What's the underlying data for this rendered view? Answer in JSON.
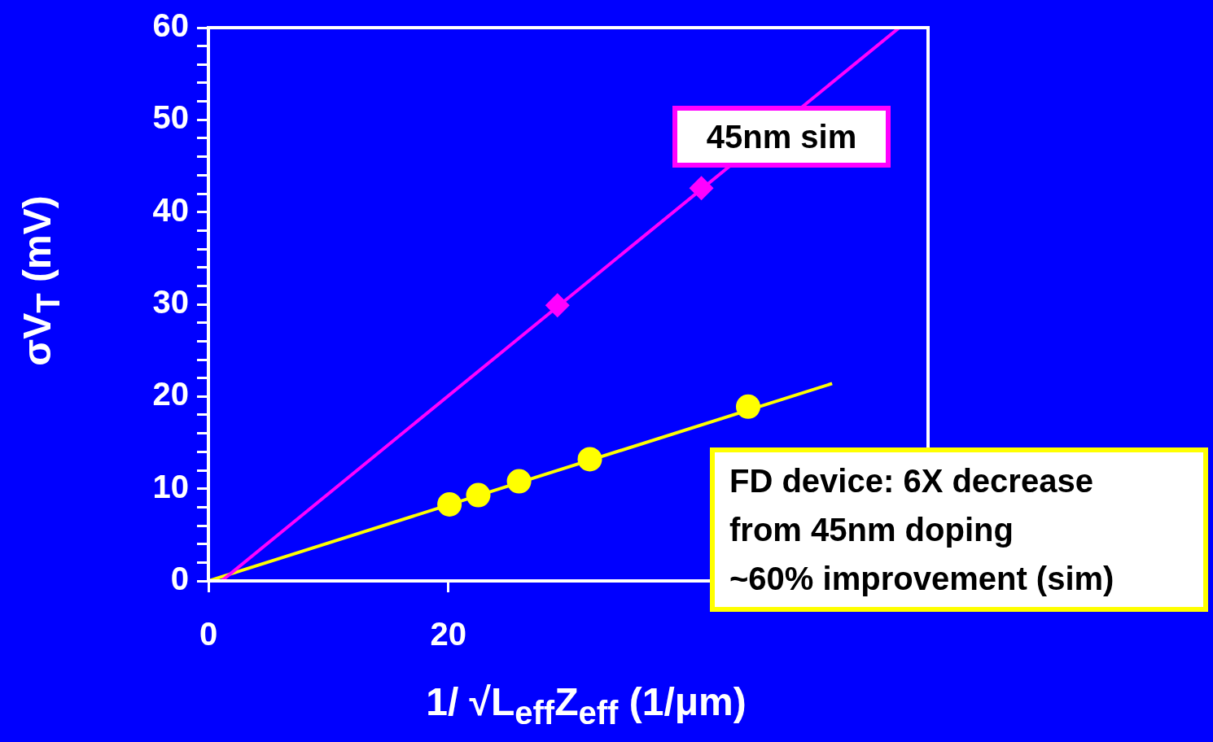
{
  "chart_data": {
    "type": "scatter",
    "xlabel": "1/ √L$_{eff}$Z$_{eff}$   (1/μm)",
    "ylabel": "σV$_{T}$  (mV)",
    "xlim": [
      0,
      60
    ],
    "xticks": [
      0,
      20
    ],
    "ylim": [
      0,
      60
    ],
    "yticks": [
      0,
      {
        "value": 2,
        "label": null
      },
      {
        "value": 4,
        "label": null
      },
      {
        "value": 6,
        "label": null
      },
      {
        "value": 8,
        "label": null
      },
      10,
      {
        "value": 12,
        "label": null
      },
      {
        "value": 14,
        "label": null
      },
      {
        "value": 16,
        "label": null
      },
      {
        "value": 18,
        "label": null
      },
      20,
      {
        "value": 22,
        "label": null
      },
      {
        "value": 24,
        "label": null
      },
      {
        "value": 26,
        "label": null
      },
      {
        "value": 28,
        "label": null
      },
      30,
      {
        "value": 32,
        "label": null
      },
      {
        "value": 34,
        "label": null
      },
      {
        "value": 36,
        "label": null
      },
      {
        "value": 38,
        "label": null
      },
      40,
      {
        "value": 42,
        "label": null
      },
      {
        "value": 44,
        "label": null
      },
      {
        "value": 46,
        "label": null
      },
      {
        "value": 48,
        "label": null
      },
      50,
      {
        "value": 52,
        "label": null
      },
      {
        "value": 54,
        "label": null
      },
      {
        "value": 56,
        "label": null
      },
      {
        "value": 58,
        "label": null
      },
      60
    ],
    "grid": false,
    "legend": false,
    "series": [
      {
        "type": "line",
        "color": "#ff00ff",
        "x": [
          1.1,
          57.6
        ],
        "values": [
          0,
          60
        ],
        "marker": "none"
      },
      {
        "type": "scatter",
        "color": "#ff00ff",
        "x": [
          29.1,
          41.1
        ],
        "values": [
          29.9,
          42.6
        ],
        "marker": "diamond"
      },
      {
        "type": "line",
        "color": "#ffff00",
        "x": [
          0,
          52
        ],
        "values": [
          0,
          21.4
        ],
        "marker": "none"
      },
      {
        "type": "scatter",
        "color": "#ffff00",
        "x": [
          20.1,
          22.5,
          25.9,
          31.8,
          45.0
        ],
        "values": [
          8.3,
          9.3,
          10.8,
          13.2,
          18.9
        ],
        "marker": "circle"
      }
    ],
    "annotations": [
      "45nm sim",
      "FD device: 6X decrease\nfrom 45nm doping\n~60% improvement (sim)"
    ]
  }
}
